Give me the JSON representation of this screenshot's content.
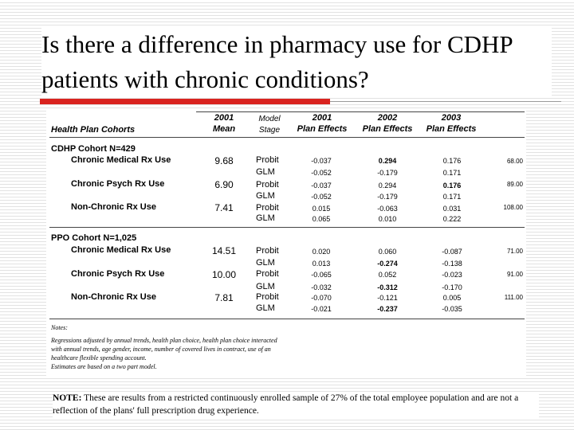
{
  "title": "Is there a difference in pharmacy use for CDHP patients with chronic conditions?",
  "table": {
    "headers": {
      "cohorts": "Health Plan Cohorts",
      "mean_line1": "2001",
      "mean_line2": "Mean",
      "stage_line1": "Model",
      "stage_line2": "Stage",
      "pe2001_line1": "2001",
      "pe2001_line2": "Plan Effects",
      "pe2002_line1": "2002",
      "pe2002_line2": "Plan Effects",
      "pe2003_line1": "2003",
      "pe2003_line2": "Plan Effects"
    },
    "groups": [
      {
        "name": "CDHP Cohort N=429",
        "rows": [
          {
            "label": "Chronic Medical Rx Use",
            "mean": "9.68",
            "extra": "68.00",
            "probit": {
              "stage": "Probit",
              "v2001": "-0.037",
              "v2002": "0.294",
              "v2003": "0.176"
            },
            "glm": {
              "stage": "GLM",
              "v2001": "-0.052",
              "v2002": "-0.179",
              "v2003": "0.171"
            }
          },
          {
            "label": "Chronic Psych Rx Use",
            "mean": "6.90",
            "extra": "89.00",
            "probit": {
              "stage": "Probit",
              "v2001": "-0.037",
              "v2002": "0.294",
              "v2003": "0.176"
            },
            "glm": {
              "stage": "GLM",
              "v2001": "-0.052",
              "v2002": "-0.179",
              "v2003": "0.171"
            }
          },
          {
            "label": "Non-Chronic Rx Use",
            "mean": "7.41",
            "extra": "108.00",
            "probit": {
              "stage": "Probit",
              "v2001": "0.015",
              "v2002": "-0.063",
              "v2003": "0.031"
            },
            "glm": {
              "stage": "GLM",
              "v2001": "0.065",
              "v2002": "0.010",
              "v2003": "0.222"
            }
          }
        ]
      },
      {
        "name": "PPO Cohort N=1,025",
        "rows": [
          {
            "label": "Chronic Medical Rx Use",
            "mean": "14.51",
            "extra": "71.00",
            "probit": {
              "stage": "Probit",
              "v2001": "0.020",
              "v2002": "0.060",
              "v2003": "-0.087"
            },
            "glm": {
              "stage": "GLM",
              "v2001": "0.013",
              "v2002": "-0.274",
              "v2003": "-0.138"
            }
          },
          {
            "label": "Chronic Psych Rx Use",
            "mean": "10.00",
            "extra": "91.00",
            "probit": {
              "stage": "Probit",
              "v2001": "-0.065",
              "v2002": "0.052",
              "v2003": "-0.023"
            },
            "glm": {
              "stage": "GLM",
              "v2001": "-0.032",
              "v2002": "-0.312",
              "v2003": "-0.170"
            }
          },
          {
            "label": "Non-Chronic Rx Use",
            "mean": "7.81",
            "extra": "111.00",
            "probit": {
              "stage": "Probit",
              "v2001": "-0.070",
              "v2002": "-0.121",
              "v2003": "0.005"
            },
            "glm": {
              "stage": "GLM",
              "v2001": "-0.021",
              "v2002": "-0.237",
              "v2003": "-0.035"
            }
          }
        ]
      }
    ],
    "notes": [
      "Notes:",
      "Regressions adjusted by annual trends, health plan choice, health plan choice interacted",
      "with annual trends, age gender, income, number of covered lives in contract, use of an",
      "healthcare flexible spending account.",
      "Estimates are based on a two part model."
    ]
  },
  "footnote": {
    "label": "NOTE:",
    "text": " These are results from a restricted continuously enrolled sample of 27% of the total employee population and are not a reflection of the plans' full prescription drug experience."
  }
}
